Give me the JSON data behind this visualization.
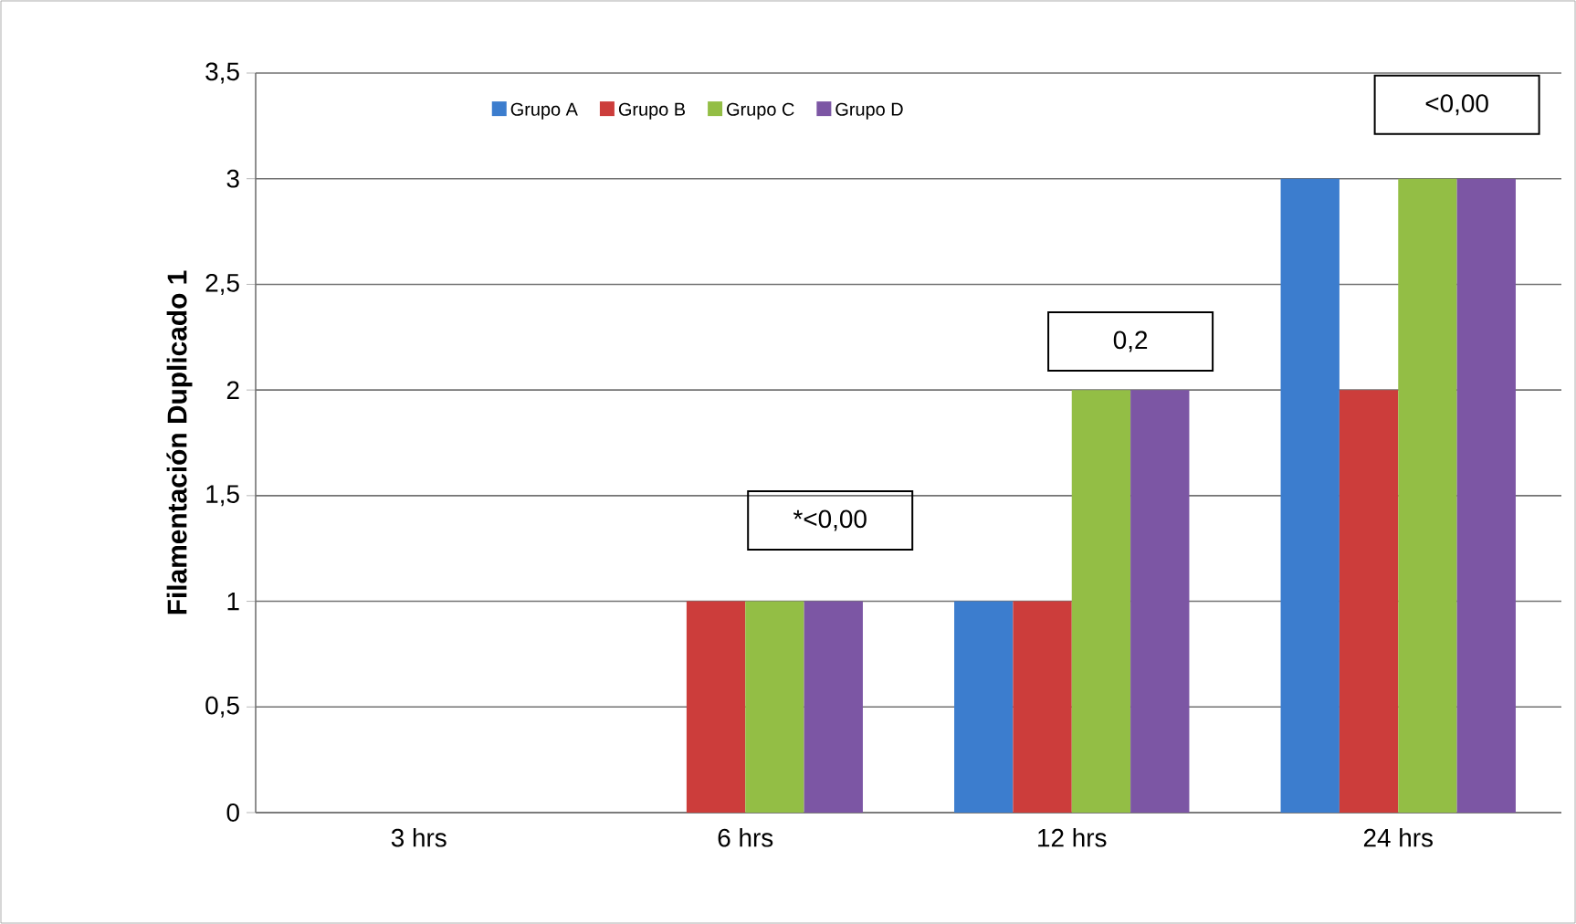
{
  "chart_data": {
    "type": "bar",
    "ylabel": "Filamentación Duplicado 1",
    "categories": [
      "3 hrs",
      "6 hrs",
      "12 hrs",
      "24 hrs"
    ],
    "series": [
      {
        "name": "Grupo A",
        "color": "#3c7dce",
        "values": [
          0,
          0,
          1,
          3
        ]
      },
      {
        "name": "Grupo B",
        "color": "#cc3d3b",
        "values": [
          0,
          1,
          1,
          2
        ]
      },
      {
        "name": "Grupo C",
        "color": "#93be45",
        "values": [
          0,
          1,
          2,
          3
        ]
      },
      {
        "name": "Grupo D",
        "color": "#7c56a4",
        "values": [
          0,
          1,
          2,
          3
        ]
      }
    ],
    "ylim": [
      0,
      3.5
    ],
    "yticks": [
      0,
      {
        "value": 0.5,
        "label": "0,5"
      },
      1,
      {
        "value": 1.5,
        "label": "1,5"
      },
      2,
      {
        "value": 2.5,
        "label": "2,5"
      },
      3,
      {
        "value": 3.5,
        "label": "3,5"
      }
    ],
    "grid": "y",
    "legend": "top",
    "annotations": [
      "*<0,00",
      "0,2",
      "<0,00"
    ]
  }
}
